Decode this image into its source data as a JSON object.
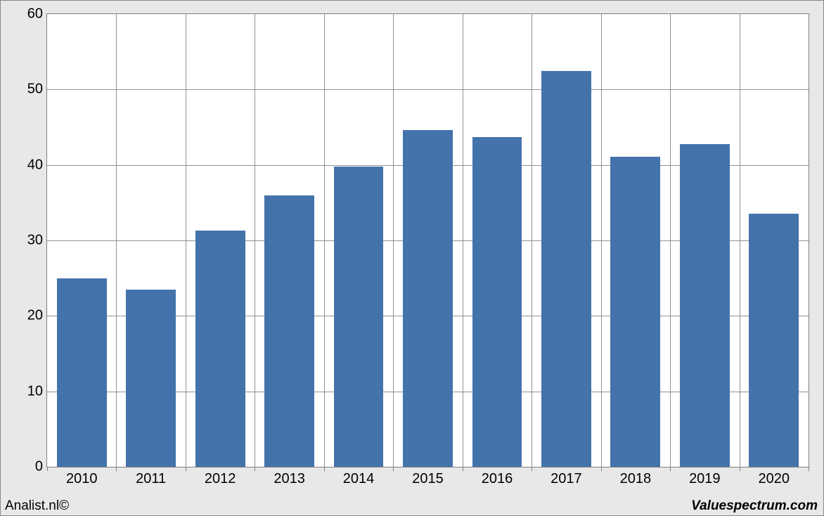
{
  "chart": {
    "type": "bar",
    "categories": [
      "2010",
      "2011",
      "2012",
      "2013",
      "2014",
      "2015",
      "2016",
      "2017",
      "2018",
      "2019",
      "2020"
    ],
    "values": [
      25.0,
      23.5,
      31.3,
      36.0,
      39.8,
      44.6,
      43.7,
      52.5,
      41.1,
      42.8,
      33.5
    ],
    "bar_color": "#4473ab",
    "ylim": [
      0,
      60
    ],
    "ytick_step": 10,
    "yticks": [
      0,
      10,
      20,
      30,
      40,
      50,
      60
    ],
    "grid_color": "#7f7f7f",
    "background_color": "#ffffff",
    "outer_background": "#e8e8e8",
    "bar_width_ratio": 0.72,
    "label_fontsize": 20,
    "label_color": "#000000"
  },
  "footer": {
    "left": "Analist.nl©",
    "right": "Valuespectrum.com"
  }
}
